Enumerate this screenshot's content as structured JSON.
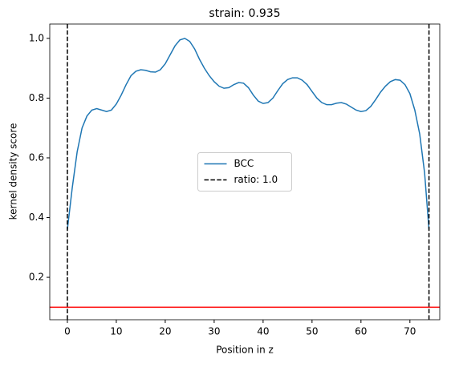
{
  "chart_data": {
    "type": "line",
    "title": "strain: 0.935",
    "xlabel": "Position in z",
    "ylabel": "kernel density score",
    "x": [
      0,
      1,
      2,
      3,
      4,
      5,
      6,
      7,
      8,
      9,
      10,
      11,
      12,
      13,
      14,
      15,
      16,
      17,
      18,
      19,
      20,
      21,
      22,
      23,
      24,
      25,
      26,
      27,
      28,
      29,
      30,
      31,
      32,
      33,
      34,
      35,
      36,
      37,
      38,
      39,
      40,
      41,
      42,
      43,
      44,
      45,
      46,
      47,
      48,
      49,
      50,
      51,
      52,
      53,
      54,
      55,
      56,
      57,
      58,
      59,
      60,
      61,
      62,
      63,
      64,
      65,
      66,
      67,
      68,
      69,
      70,
      71,
      72,
      73,
      73.9
    ],
    "series": [
      {
        "name": "BCC",
        "color": "#1f77b4",
        "values": [
          0.36,
          0.5,
          0.62,
          0.7,
          0.74,
          0.76,
          0.765,
          0.76,
          0.755,
          0.76,
          0.78,
          0.81,
          0.845,
          0.875,
          0.89,
          0.895,
          0.893,
          0.888,
          0.887,
          0.895,
          0.915,
          0.945,
          0.975,
          0.995,
          1.0,
          0.99,
          0.965,
          0.93,
          0.9,
          0.875,
          0.855,
          0.84,
          0.833,
          0.835,
          0.845,
          0.852,
          0.85,
          0.835,
          0.81,
          0.79,
          0.782,
          0.785,
          0.8,
          0.825,
          0.848,
          0.862,
          0.868,
          0.868,
          0.86,
          0.845,
          0.822,
          0.8,
          0.785,
          0.778,
          0.778,
          0.783,
          0.785,
          0.78,
          0.77,
          0.76,
          0.755,
          0.758,
          0.772,
          0.795,
          0.82,
          0.84,
          0.855,
          0.862,
          0.86,
          0.845,
          0.815,
          0.76,
          0.68,
          0.55,
          0.36
        ]
      }
    ],
    "vlines": {
      "name": "ratio: 1.0",
      "color": "#000000",
      "values": [
        0,
        73.9
      ]
    },
    "hline": {
      "color": "#ff0000",
      "value": 0.1
    },
    "xlim": [
      -3.6,
      76.1
    ],
    "ylim": [
      0.058,
      1.048
    ],
    "xticks": [
      0,
      10,
      20,
      30,
      40,
      50,
      60,
      70
    ],
    "yticks": [
      0.2,
      0.4,
      0.6,
      0.8,
      {
        "value": 1,
        "label": "1.0"
      }
    ],
    "legend": "center"
  }
}
